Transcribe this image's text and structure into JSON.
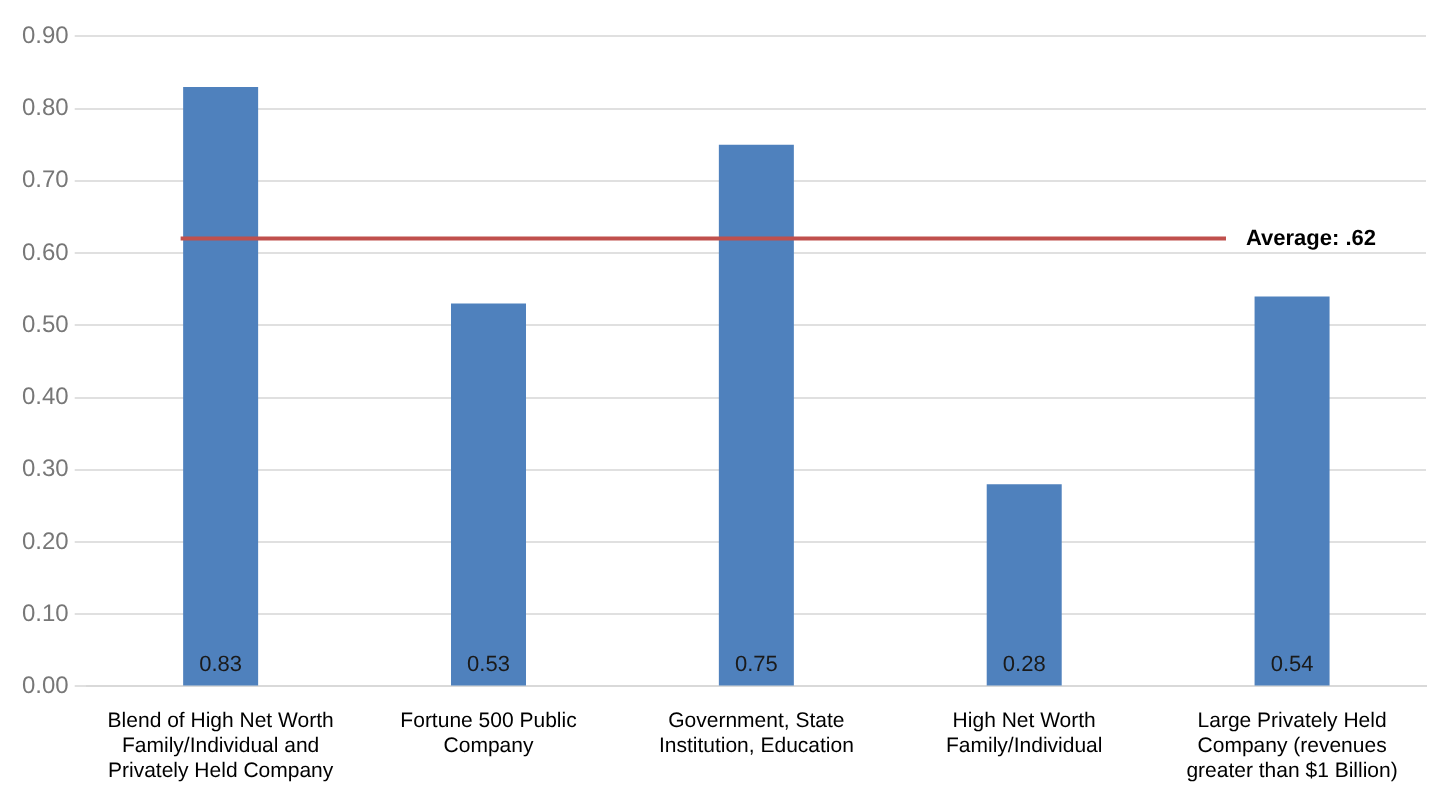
{
  "chart_data": {
    "type": "bar",
    "categories": [
      "Blend of High Net Worth Family/Individual and Privately Held Company",
      "Fortune 500 Public Company",
      "Government, State Institution, Education",
      "High Net Worth Family/Individual",
      "Large Privately Held Company (revenues greater than $1 Billion)"
    ],
    "values": [
      0.83,
      0.53,
      0.75,
      0.28,
      0.54
    ],
    "color": "#4f81bd",
    "data_labels": true,
    "ylim": [
      0,
      0.9
    ],
    "yticks": [
      {
        "value": 0,
        "label": "0.00"
      },
      {
        "value": 0.1,
        "label": "0.10"
      },
      {
        "value": 0.2,
        "label": "0.20"
      },
      {
        "value": 0.3,
        "label": "0.30"
      },
      {
        "value": 0.4,
        "label": "0.40"
      },
      {
        "value": 0.5,
        "label": "0.50"
      },
      {
        "value": 0.6,
        "label": "0.60"
      },
      {
        "value": 0.7,
        "label": "0.70"
      },
      {
        "value": 0.8,
        "label": "0.80"
      },
      {
        "value": 0.9,
        "label": "0.90"
      }
    ],
    "grid": "y",
    "legend": false,
    "ref_lines": [
      {
        "axis": "y",
        "value": 0.62,
        "label": "Average: .62",
        "color": "#c0504d"
      }
    ]
  }
}
